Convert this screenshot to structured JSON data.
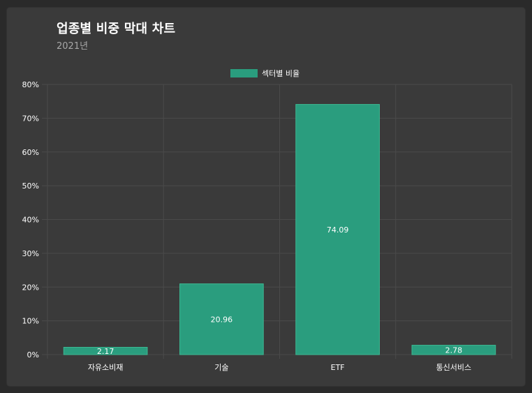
{
  "header": {
    "title": "업종별 비중 막대 차트",
    "subtitle": "2021년"
  },
  "colors": {
    "background": "#2a2a2a",
    "card": "#3a3a3a",
    "bar": "#2a9d7e",
    "grid": "#4a4a4a",
    "text": "#ffffff"
  },
  "chart_data": {
    "type": "bar",
    "categories": [
      "자유소비재",
      "기술",
      "ETF",
      "통신서비스"
    ],
    "series": [
      {
        "name": "섹터별 비율",
        "values": [
          2.17,
          20.96,
          74.09,
          2.78
        ]
      }
    ],
    "data_labels": [
      "2.17",
      "20.96",
      "74.09",
      "2.78"
    ],
    "ylim": [
      0,
      80
    ],
    "y_ticks": [
      0,
      10,
      20,
      30,
      40,
      50,
      60,
      70,
      80
    ],
    "y_tick_labels": [
      "0%",
      "10%",
      "20%",
      "30%",
      "40%",
      "50%",
      "60%",
      "70%",
      "80%"
    ],
    "legend_position": "top-center",
    "grid": true
  }
}
